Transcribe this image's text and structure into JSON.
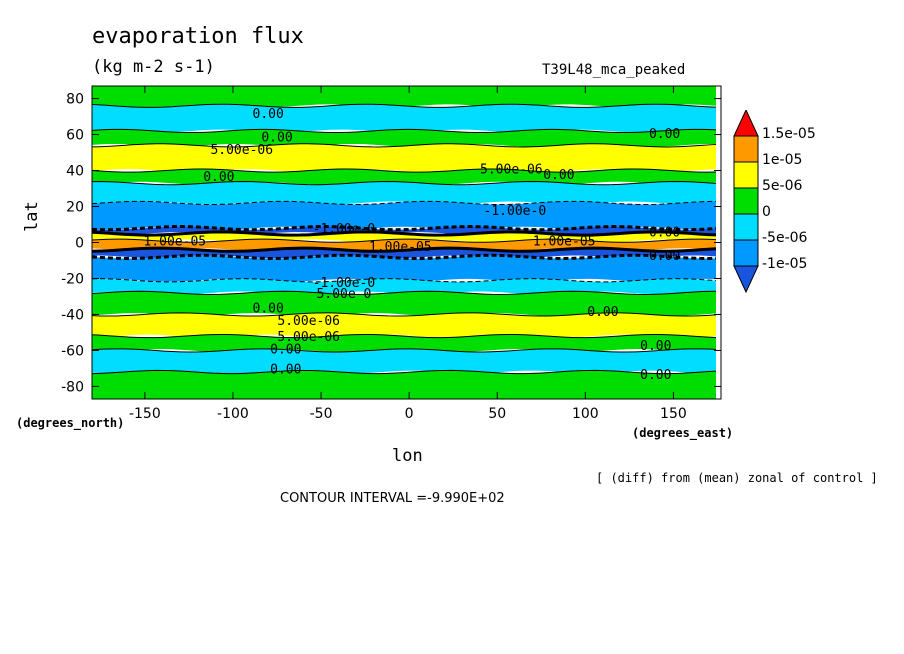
{
  "chart_data": {
    "type": "heatmap",
    "title": "evaporation flux",
    "units": "(kg m-2 s-1)",
    "run_label": "T39L48_mca_peaked",
    "xlabel": "lon",
    "ylabel": "lat",
    "x_unit_label": "(degrees_east)",
    "y_unit_label": "(degrees_north)",
    "xlim": [
      -180,
      177
    ],
    "ylim": [
      -87,
      87
    ],
    "x_ticks": [
      "-150",
      "-100",
      "-50",
      "0",
      "50",
      "100",
      "150"
    ],
    "x_tick_values": [
      -150,
      -100,
      -50,
      0,
      50,
      100,
      150
    ],
    "y_ticks": [
      "80",
      "60",
      "40",
      "20",
      "0",
      "-20",
      "-40",
      "-60",
      "-80"
    ],
    "y_tick_values": [
      80,
      60,
      40,
      20,
      0,
      -20,
      -40,
      -60,
      -80
    ],
    "colorbar": {
      "labels": [
        "1.5e-05",
        "1e-05",
        "5e-06",
        "0",
        "-5e-06",
        "-1e-05"
      ],
      "colors": [
        "#ff0000",
        "#ff9900",
        "#ffff00",
        "#00dd00",
        "#00ddff",
        "#0099ff",
        "#1a55e0"
      ]
    },
    "zonal_bands": [
      {
        "lat_from": 87,
        "lat_to": 76,
        "level": 0
      },
      {
        "lat_from": 76,
        "lat_to": 62,
        "level": -1
      },
      {
        "lat_from": 62,
        "lat_to": 54,
        "level": 0
      },
      {
        "lat_from": 54,
        "lat_to": 40,
        "level": 1
      },
      {
        "lat_from": 40,
        "lat_to": 33,
        "level": 0
      },
      {
        "lat_from": 33,
        "lat_to": 22,
        "level": -1
      },
      {
        "lat_from": 22,
        "lat_to": 8,
        "level": -2
      },
      {
        "lat_from": 8,
        "lat_to": 5,
        "level": -3
      },
      {
        "lat_from": 5,
        "lat_to": 1,
        "level": 1
      },
      {
        "lat_from": 1,
        "lat_to": -4,
        "level": 2
      },
      {
        "lat_from": -4,
        "lat_to": -8,
        "level": -3
      },
      {
        "lat_from": -8,
        "lat_to": -21,
        "level": -2
      },
      {
        "lat_from": -21,
        "lat_to": -28,
        "level": -1
      },
      {
        "lat_from": -28,
        "lat_to": -40,
        "level": 0
      },
      {
        "lat_from": -40,
        "lat_to": -52,
        "level": 1
      },
      {
        "lat_from": -52,
        "lat_to": -60,
        "level": 0
      },
      {
        "lat_from": -60,
        "lat_to": -72,
        "level": -1
      },
      {
        "lat_from": -72,
        "lat_to": -87,
        "level": 0
      }
    ],
    "contour_labels": [
      {
        "text": "0.00",
        "lon": -80,
        "lat": 72
      },
      {
        "text": "0.00",
        "lon": 145,
        "lat": 61
      },
      {
        "text": "0.00",
        "lon": -75,
        "lat": 59
      },
      {
        "text": "5.00e-06",
        "lon": -95,
        "lat": 52
      },
      {
        "text": "0.00",
        "lon": -108,
        "lat": 37
      },
      {
        "text": "5.00e-06",
        "lon": 58,
        "lat": 41
      },
      {
        "text": "0.00",
        "lon": 85,
        "lat": 38
      },
      {
        "text": "-1.00e-0",
        "lon": 60,
        "lat": 18
      },
      {
        "text": "-1.00e-0",
        "lon": -37,
        "lat": 8
      },
      {
        "text": "1.00e-05",
        "lon": -133,
        "lat": 1
      },
      {
        "text": "1.00e-05",
        "lon": -5,
        "lat": -2
      },
      {
        "text": "1.00e-05",
        "lon": 88,
        "lat": 1
      },
      {
        "text": "0.00",
        "lon": 145,
        "lat": 6
      },
      {
        "text": "0.00",
        "lon": 145,
        "lat": -7
      },
      {
        "text": "-1.00e-0",
        "lon": -37,
        "lat": -22
      },
      {
        "text": "5.00e-0",
        "lon": -37,
        "lat": -28
      },
      {
        "text": "0.00",
        "lon": -80,
        "lat": -36
      },
      {
        "text": "0.00",
        "lon": 110,
        "lat": -38
      },
      {
        "text": "5.00e-06",
        "lon": -57,
        "lat": -43
      },
      {
        "text": "5.00e-06",
        "lon": -57,
        "lat": -52
      },
      {
        "text": "0.00",
        "lon": -70,
        "lat": -59
      },
      {
        "text": "0.00",
        "lon": 140,
        "lat": -57
      },
      {
        "text": "0.00",
        "lon": -70,
        "lat": -70
      },
      {
        "text": "0.00",
        "lon": 140,
        "lat": -73
      }
    ]
  },
  "footer": {
    "note": "[ (diff) from (mean) zonal of control ]",
    "contour_interval": "CONTOUR INTERVAL =-9.990E+02"
  }
}
